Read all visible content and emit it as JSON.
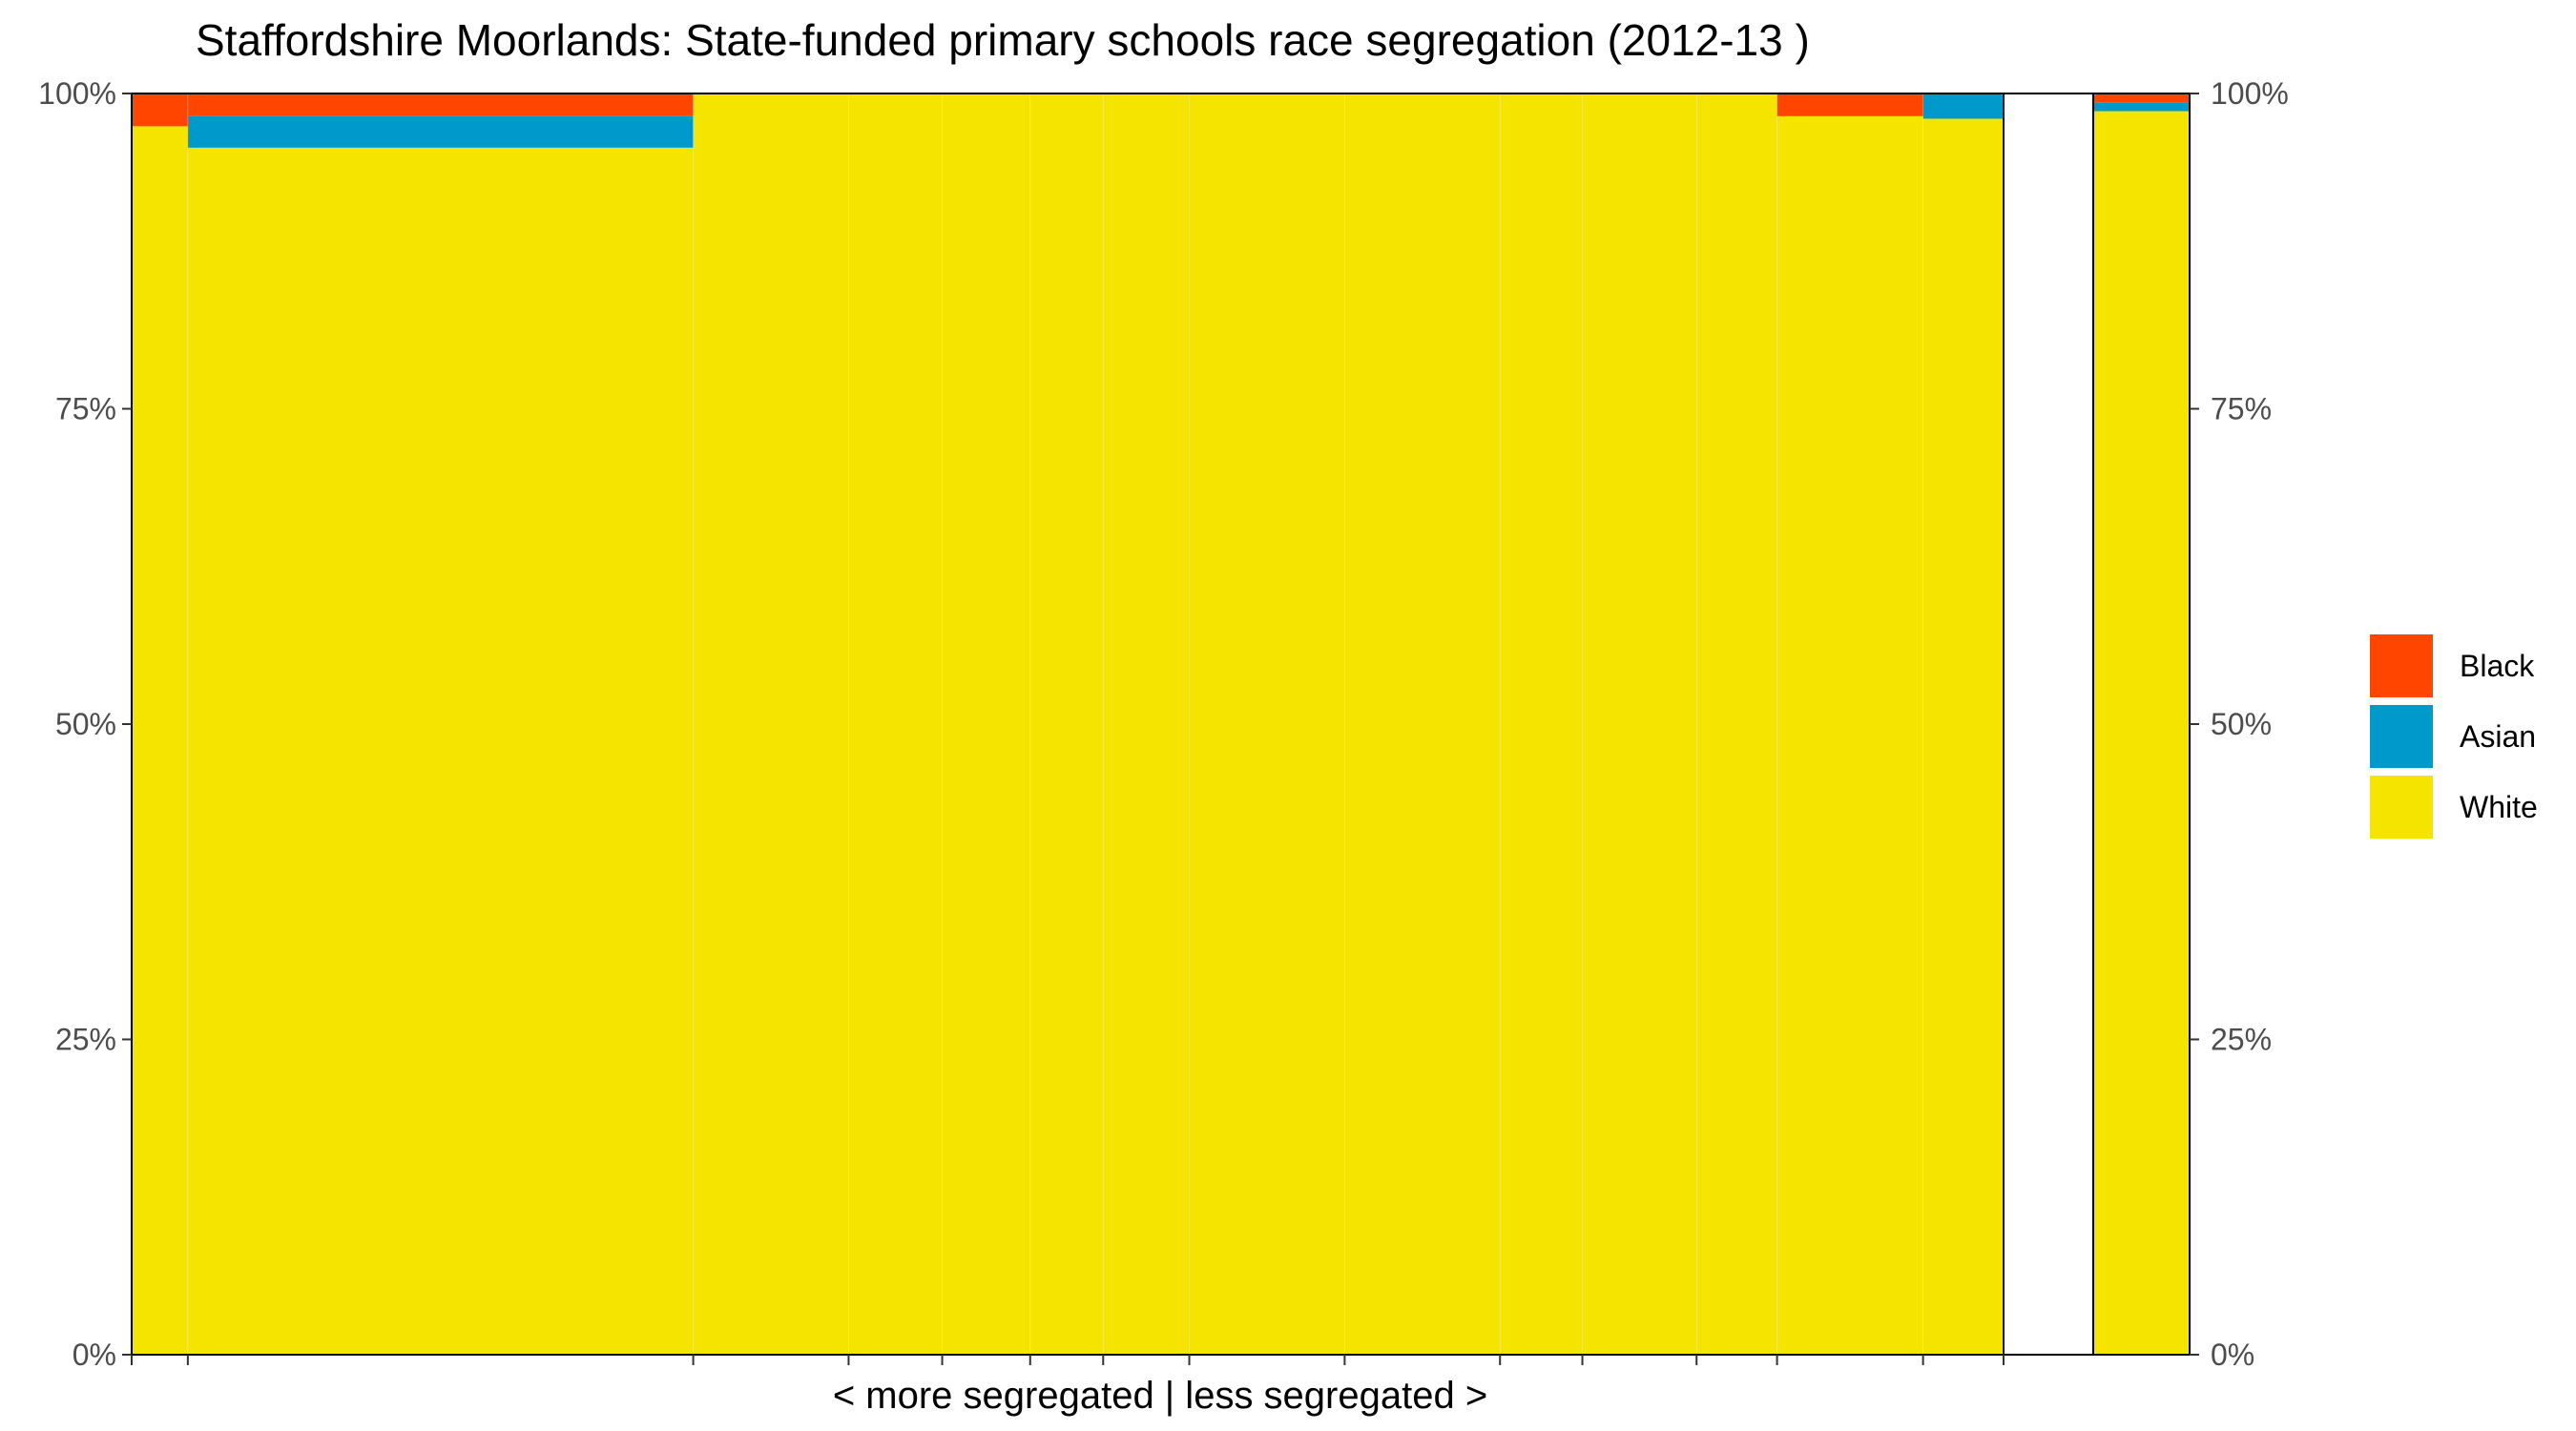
{
  "chart_data": {
    "type": "bar",
    "subtype": "stacked-variable-width (marimekko)",
    "title": "Staffordshire Moorlands: State-funded primary schools race segregation (2012-13 )",
    "xlabel": "< more segregated | less segregated >",
    "ylabel": "",
    "ylim": [
      0,
      1
    ],
    "y_ticks": [
      "0%",
      "25%",
      "50%",
      "75%",
      "100%"
    ],
    "y_ticks_right": [
      "0%",
      "25%",
      "50%",
      "75%",
      "100%"
    ],
    "x_range": [
      0,
      1
    ],
    "grid": false,
    "legend_position": "right",
    "legend": [
      {
        "name": "Black",
        "color": "#ff4500"
      },
      {
        "name": "Asian",
        "color": "#0099cc"
      },
      {
        "name": "White",
        "color": "#f5e400"
      }
    ],
    "series_order": [
      "White",
      "Asian",
      "Black"
    ],
    "colors": {
      "Black": "#ff4500",
      "Asian": "#0099cc",
      "White": "#f5e400"
    },
    "bars": [
      {
        "x0": 0.0,
        "x1": 0.03,
        "White": 0.974,
        "Asian": 0.0,
        "Black": 0.026
      },
      {
        "x0": 0.03,
        "x1": 0.3,
        "White": 0.957,
        "Asian": 0.025,
        "Black": 0.018
      },
      {
        "x0": 0.3,
        "x1": 0.383,
        "White": 1.0,
        "Asian": 0.0,
        "Black": 0.0
      },
      {
        "x0": 0.383,
        "x1": 0.433,
        "White": 1.0,
        "Asian": 0.0,
        "Black": 0.0
      },
      {
        "x0": 0.433,
        "x1": 0.48,
        "White": 1.0,
        "Asian": 0.0,
        "Black": 0.0
      },
      {
        "x0": 0.48,
        "x1": 0.519,
        "White": 1.0,
        "Asian": 0.0,
        "Black": 0.0
      },
      {
        "x0": 0.519,
        "x1": 0.565,
        "White": 1.0,
        "Asian": 0.0,
        "Black": 0.0
      },
      {
        "x0": 0.565,
        "x1": 0.648,
        "White": 1.0,
        "Asian": 0.0,
        "Black": 0.0
      },
      {
        "x0": 0.648,
        "x1": 0.731,
        "White": 1.0,
        "Asian": 0.0,
        "Black": 0.0
      },
      {
        "x0": 0.731,
        "x1": 0.775,
        "White": 1.0,
        "Asian": 0.0,
        "Black": 0.0
      },
      {
        "x0": 0.775,
        "x1": 0.836,
        "White": 1.0,
        "Asian": 0.0,
        "Black": 0.0
      },
      {
        "x0": 0.836,
        "x1": 0.879,
        "White": 1.0,
        "Asian": 0.0,
        "Black": 0.0
      },
      {
        "x0": 0.879,
        "x1": 0.957,
        "White": 0.982,
        "Asian": 0.0,
        "Black": 0.018
      },
      {
        "x0": 0.957,
        "x1": 1.0,
        "White": 0.98,
        "Asian": 0.02,
        "Black": 0.0
      }
    ],
    "right_bar": {
      "White": 0.986,
      "Asian": 0.007,
      "Black": 0.007
    }
  }
}
